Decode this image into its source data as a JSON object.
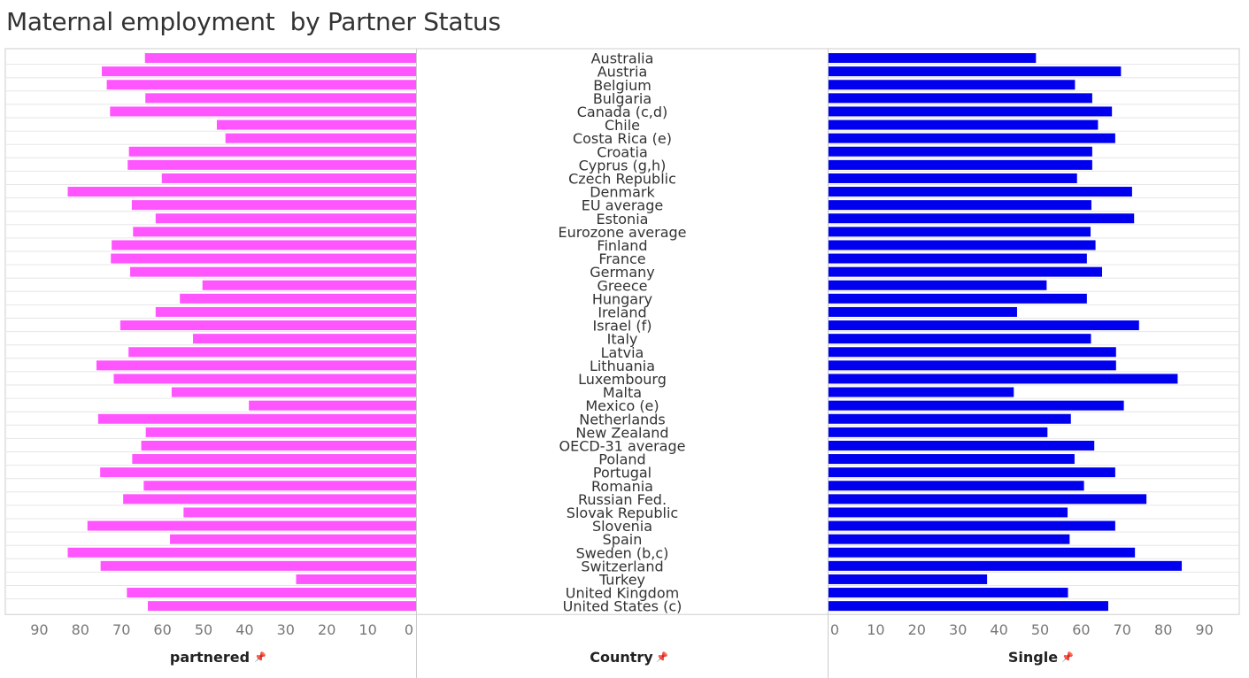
{
  "title": "Maternal employment  by Partner Status",
  "colors": {
    "partnered": "#ff55ff",
    "single": "#0000ee",
    "grid": "#e6e6e6",
    "border": "#cccccc"
  },
  "headers": {
    "left": "partnered",
    "center": "Country",
    "right": "Single",
    "pin_icon": "pin-icon"
  },
  "chart_data": {
    "type": "bar",
    "title": "Maternal employment  by Partner Status",
    "categories": [
      "Australia",
      "Austria",
      "Belgium",
      "Bulgaria",
      "Canada (c,d)",
      "Chile",
      "Costa Rica (e)",
      "Croatia",
      "Cyprus (g,h)",
      "Czech Republic",
      "Denmark",
      "EU average",
      "Estonia",
      "Eurozone average",
      "Finland",
      "France",
      "Germany",
      "Greece",
      "Hungary",
      "Ireland",
      "Israel (f)",
      "Italy",
      "Latvia",
      "Lithuania",
      "Luxembourg",
      "Malta",
      "Mexico (e)",
      "Netherlands",
      "New Zealand",
      "OECD-31 average",
      "Poland",
      "Portugal",
      "Romania",
      "Russian Fed.",
      "Slovak Republic",
      "Slovenia",
      "Spain",
      "Sweden (b,c)",
      "Switzerland",
      "Turkey",
      "United Kingdom",
      "United States (c)"
    ],
    "series": [
      {
        "name": "partnered",
        "values": [
          66.0,
          76.5,
          75.3,
          65.9,
          74.5,
          48.5,
          46.4,
          69.9,
          70.2,
          61.9,
          84.8,
          69.2,
          63.4,
          68.9,
          74.1,
          74.3,
          69.6,
          52.0,
          57.5,
          63.4,
          72.0,
          54.3,
          70.0,
          77.8,
          73.6,
          59.5,
          40.7,
          77.4,
          65.8,
          66.9,
          69.1,
          76.9,
          66.3,
          71.3,
          56.6,
          80.0,
          59.9,
          84.8,
          76.8,
          29.2,
          70.4,
          65.3
        ]
      },
      {
        "name": "Single",
        "values": [
          50.5,
          71.2,
          60.0,
          64.2,
          69.0,
          65.6,
          69.8,
          64.2,
          64.2,
          60.5,
          73.9,
          64.0,
          74.4,
          63.8,
          65.0,
          62.9,
          66.6,
          53.1,
          62.9,
          45.9,
          75.6,
          63.9,
          70.0,
          70.0,
          85.0,
          45.1,
          71.9,
          59.0,
          53.3,
          64.7,
          59.9,
          69.8,
          62.2,
          77.4,
          58.2,
          69.8,
          58.7,
          74.6,
          86.0,
          38.6,
          58.3,
          68.1
        ]
      }
    ],
    "left_axis": {
      "ticks": [
        "90",
        "80",
        "70",
        "60",
        "50",
        "40",
        "30",
        "20",
        "10",
        "0"
      ],
      "reversed": true,
      "range": [
        0,
        99
      ]
    },
    "right_axis": {
      "ticks": [
        "0",
        "10",
        "20",
        "30",
        "40",
        "50",
        "60",
        "70",
        "80",
        "90"
      ],
      "range": [
        0,
        99
      ]
    },
    "xlabel_left": "partnered",
    "xlabel_center": "Country",
    "xlabel_right": "Single",
    "grid": true
  }
}
